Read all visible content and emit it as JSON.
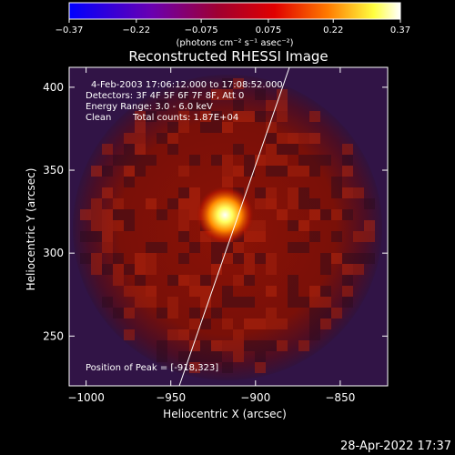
{
  "colorbar": {
    "ticks": [
      "-0.37",
      "-0.22",
      "-0.075",
      "0.075",
      "0.22",
      "0.37"
    ],
    "range": [
      -0.37,
      0.37
    ],
    "units": "(photons cm⁻² s⁻¹ asec⁻²)"
  },
  "title": "Reconstructed RHESSI Image",
  "annotations": {
    "time": "4-Feb-2003 17:06:12.000 to 17:08:52.000",
    "detectors": "Detectors: 3F 4F 5F 6F 7F 8F, Att 0",
    "energy": "Energy Range: 3.0 - 6.0 keV",
    "clean": "Clean",
    "counts": "Total counts: 1.87E+04",
    "peak": "Position of Peak = [-918,323]"
  },
  "footer": {
    "timestamp": "28-Apr-2022 17:37"
  },
  "chart_data": {
    "type": "heatmap",
    "title": "Reconstructed RHESSI Image",
    "xlabel": "Heliocentric X (arcsec)",
    "ylabel": "Heliocentric Y (arcsec)",
    "xlim": [
      -1010,
      -822
    ],
    "ylim": [
      220,
      412
    ],
    "x_ticks": [
      -1000,
      -950,
      -900,
      -850
    ],
    "y_ticks": [
      250,
      300,
      350,
      400
    ],
    "x_tick_labels": [
      "−1000",
      "−950",
      "−900",
      "−850"
    ],
    "y_tick_labels": [
      "250",
      "300",
      "350",
      "400"
    ],
    "peak": {
      "x": -918,
      "y": 323
    },
    "limb_line": [
      [
        -945,
        220
      ],
      [
        -880,
        412
      ]
    ],
    "colormap": [
      "#0000ff",
      "#7a00a0",
      "#c00000",
      "#ff6a00",
      "#ffff40",
      "#ffffff"
    ]
  }
}
